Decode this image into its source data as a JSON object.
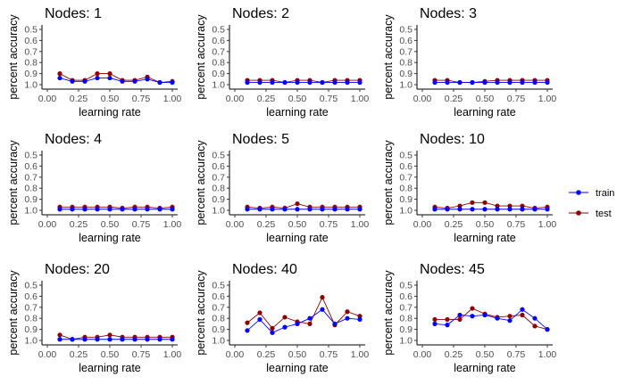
{
  "chart_data": {
    "type": "line",
    "layout": "3x3 facet grid",
    "xlabel": "learning rate",
    "ylabel": "percent accuracy",
    "xlim": [
      0.0,
      1.0
    ],
    "ylim": [
      0.5,
      1.0
    ],
    "y_reversed": true,
    "x_ticks": [
      "0.00",
      "0.25",
      "0.50",
      "0.75",
      "1.00"
    ],
    "y_ticks": [
      "0.5",
      "0.6",
      "0.7",
      "0.8",
      "0.9",
      "1.0"
    ],
    "grid": false,
    "legend_position": "right",
    "series_colors": {
      "train": "#0000ff",
      "test": "#8b0000"
    },
    "legend": [
      {
        "name": "train",
        "color": "#0000ff"
      },
      {
        "name": "test",
        "color": "#8b0000"
      }
    ],
    "x": [
      0.1,
      0.2,
      0.3,
      0.4,
      0.5,
      0.6,
      0.7,
      0.8,
      0.9,
      1.0
    ],
    "panels": [
      {
        "title": "Nodes: 1",
        "train": [
          0.94,
          0.97,
          0.97,
          0.94,
          0.94,
          0.97,
          0.97,
          0.95,
          0.98,
          0.98
        ],
        "test": [
          0.9,
          0.96,
          0.96,
          0.9,
          0.9,
          0.96,
          0.96,
          0.93,
          0.98,
          0.97
        ]
      },
      {
        "title": "Nodes: 2",
        "train": [
          0.98,
          0.98,
          0.98,
          0.98,
          0.98,
          0.98,
          0.98,
          0.98,
          0.98,
          0.98
        ],
        "test": [
          0.96,
          0.96,
          0.96,
          0.98,
          0.96,
          0.96,
          0.98,
          0.96,
          0.96,
          0.96
        ]
      },
      {
        "title": "Nodes: 3",
        "train": [
          0.98,
          0.98,
          0.98,
          0.98,
          0.98,
          0.98,
          0.98,
          0.98,
          0.98,
          0.98
        ],
        "test": [
          0.96,
          0.96,
          0.98,
          0.98,
          0.97,
          0.96,
          0.96,
          0.96,
          0.96,
          0.96
        ]
      },
      {
        "title": "Nodes: 4",
        "train": [
          0.99,
          0.99,
          0.99,
          0.99,
          0.99,
          0.99,
          0.99,
          0.99,
          0.99,
          0.99
        ],
        "test": [
          0.97,
          0.97,
          0.97,
          0.97,
          0.97,
          0.98,
          0.97,
          0.97,
          0.98,
          0.97
        ]
      },
      {
        "title": "Nodes: 5",
        "train": [
          0.99,
          0.99,
          0.99,
          0.99,
          0.99,
          0.99,
          0.99,
          0.99,
          0.99,
          0.99
        ],
        "test": [
          0.97,
          0.98,
          0.97,
          0.98,
          0.94,
          0.97,
          0.97,
          0.97,
          0.97,
          0.97
        ]
      },
      {
        "title": "Nodes: 10",
        "train": [
          0.99,
          0.99,
          0.99,
          0.99,
          0.99,
          0.99,
          0.99,
          0.99,
          0.99,
          0.99
        ],
        "test": [
          0.97,
          0.98,
          0.96,
          0.93,
          0.93,
          0.96,
          0.96,
          0.96,
          0.98,
          0.97
        ]
      },
      {
        "title": "Nodes: 20",
        "train": [
          0.99,
          0.99,
          0.99,
          0.99,
          0.99,
          0.99,
          0.99,
          0.99,
          0.99,
          0.99
        ],
        "test": [
          0.95,
          0.99,
          0.97,
          0.97,
          0.95,
          0.97,
          0.97,
          0.97,
          0.97,
          0.97
        ]
      },
      {
        "title": "Nodes: 40",
        "train": [
          0.91,
          0.81,
          0.93,
          0.88,
          0.85,
          0.8,
          0.72,
          0.85,
          0.8,
          0.81
        ],
        "test": [
          0.84,
          0.75,
          0.89,
          0.79,
          0.83,
          0.85,
          0.61,
          0.86,
          0.74,
          0.78
        ]
      },
      {
        "title": "Nodes: 45",
        "train": [
          0.85,
          0.86,
          0.77,
          0.78,
          0.77,
          0.8,
          0.82,
          0.72,
          0.8,
          0.9
        ],
        "test": [
          0.81,
          0.81,
          0.81,
          0.71,
          0.76,
          0.79,
          0.78,
          0.77,
          0.87,
          0.9
        ]
      }
    ]
  }
}
